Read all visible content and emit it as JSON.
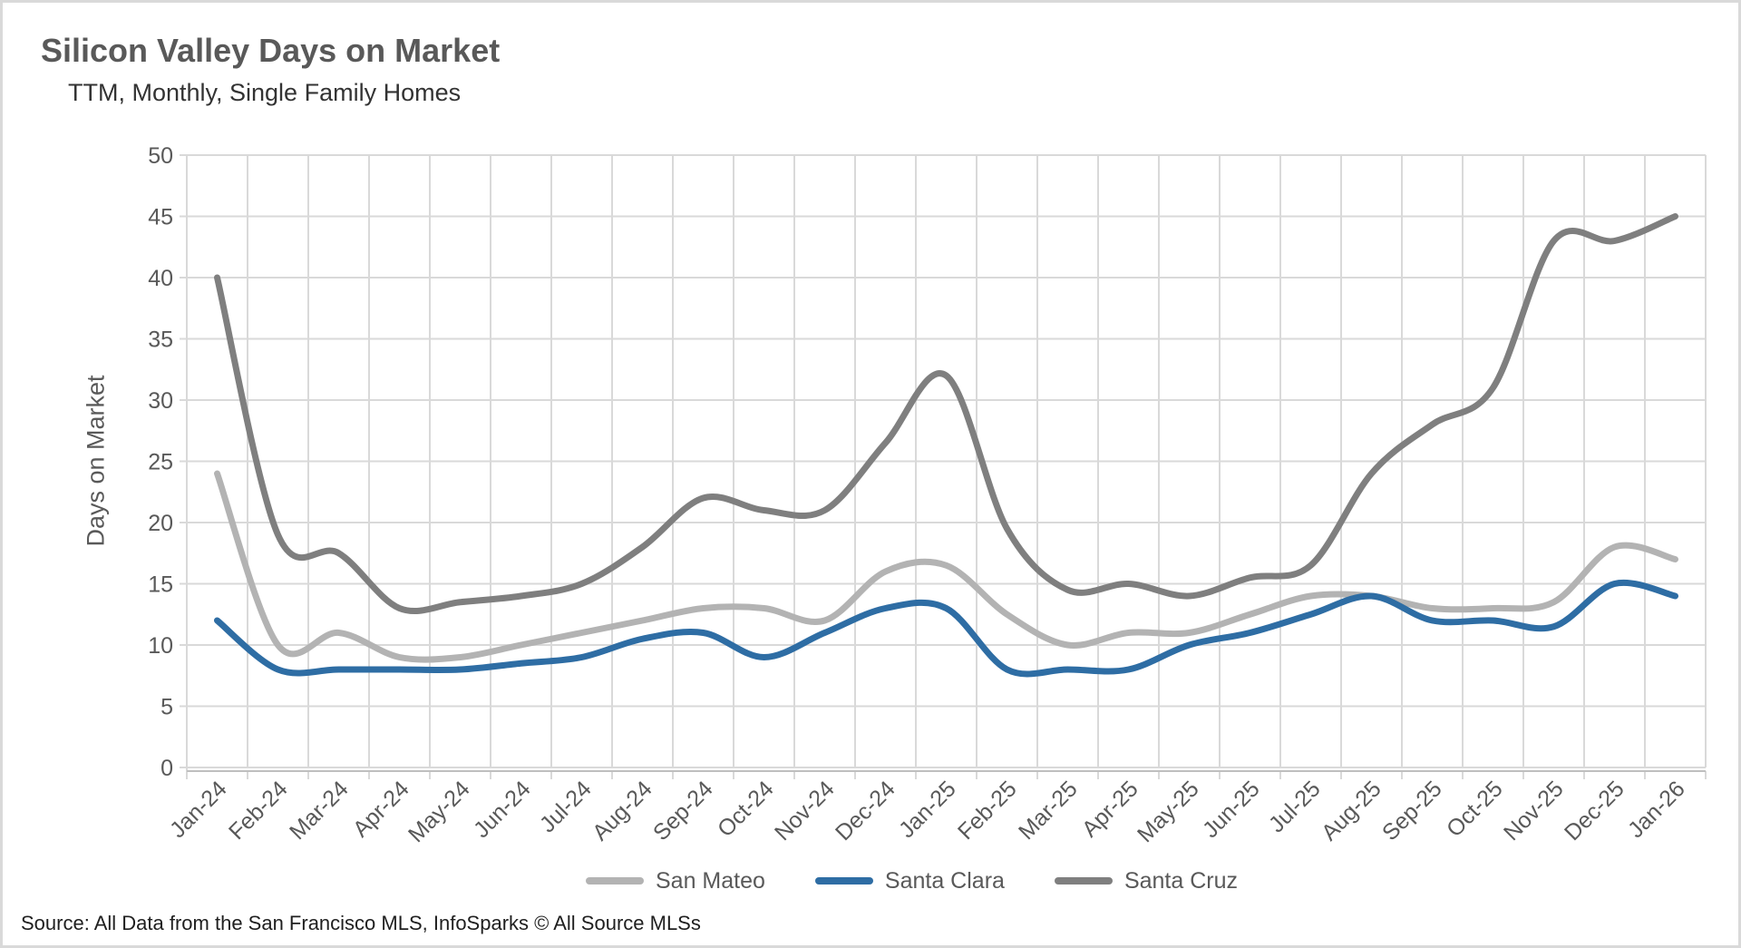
{
  "header": {
    "title": "Silicon Valley Days on Market",
    "subtitle": "TTM, Monthly, Single Family Homes"
  },
  "source_note": "Source: All Data from the San Francisco MLS, InfoSparks © All Source MLSs",
  "colors": {
    "grid": "#d9d9d9",
    "axis_line": "#bfbfbf",
    "axis_text": "#595959",
    "background": "#ffffff",
    "frame": "#d9d9d9"
  },
  "chart_data": {
    "type": "line",
    "smoothed": true,
    "title": "Silicon Valley Days on Market",
    "subtitle": "TTM, Monthly, Single Family Homes",
    "xlabel": "",
    "ylabel": "Days on Market",
    "ylim": [
      0,
      50
    ],
    "yticks": [
      0,
      5,
      10,
      15,
      20,
      25,
      30,
      35,
      40,
      45,
      50
    ],
    "grid": true,
    "legend_position": "bottom",
    "categories": [
      "Jan-24",
      "Feb-24",
      "Mar-24",
      "Apr-24",
      "May-24",
      "Jun-24",
      "Jul-24",
      "Aug-24",
      "Sep-24",
      "Oct-24",
      "Nov-24",
      "Dec-24",
      "Jan-25",
      "Feb-25",
      "Mar-25",
      "Apr-25",
      "May-25",
      "Jun-25",
      "Jul-25",
      "Aug-25",
      "Sep-25",
      "Oct-25",
      "Nov-25",
      "Dec-25",
      "Jan-26"
    ],
    "series": [
      {
        "name": "San Mateo",
        "color": "#b3b3b3",
        "values": [
          24,
          10,
          11,
          9,
          9,
          10,
          11,
          12,
          13,
          13,
          12,
          16,
          16.5,
          12.5,
          10,
          11,
          11,
          12.5,
          14,
          14,
          13,
          13,
          13.5,
          18,
          17
        ]
      },
      {
        "name": "Santa Clara",
        "color": "#2e6da4",
        "values": [
          12,
          8,
          8,
          8,
          8,
          8.5,
          9,
          10.5,
          11,
          9,
          11,
          13,
          13,
          8,
          8,
          8,
          10,
          11,
          12.5,
          14,
          12,
          12,
          11.5,
          15,
          14
        ]
      },
      {
        "name": "Santa Cruz",
        "color": "#7f7f7f",
        "values": [
          40,
          19,
          17.5,
          13,
          13.5,
          14,
          15,
          18,
          22,
          21,
          21,
          26.5,
          32,
          19.5,
          14.5,
          15,
          14,
          15.5,
          16.5,
          24,
          28,
          31,
          43,
          43,
          45
        ]
      }
    ]
  }
}
